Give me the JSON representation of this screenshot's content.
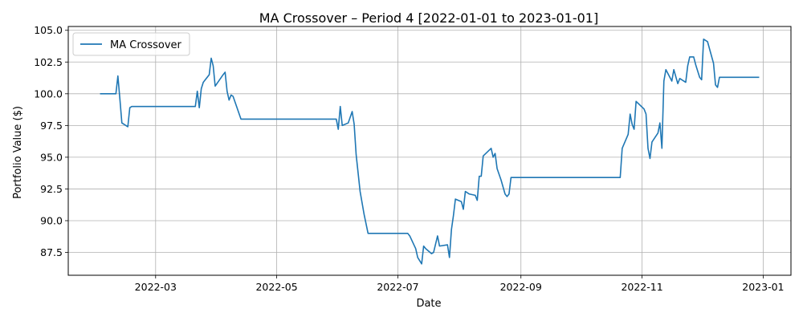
{
  "chart_data": {
    "type": "line",
    "title": "MA Crossover – Period 4 [2022-01-01 to 2023-01-01]",
    "xlabel": "Date",
    "ylabel": "Portfolio Value ($)",
    "xlim": [
      "2022-01-16",
      "2023-01-15"
    ],
    "ylim": [
      85.7,
      105.3
    ],
    "grid": true,
    "legend_position": "top-left",
    "xticks": [
      "2022-03",
      "2022-05",
      "2022-07",
      "2022-09",
      "2022-11",
      "2023-01"
    ],
    "yticks": [
      "87.5",
      "90.0",
      "92.5",
      "95.0",
      "97.5",
      "100.0",
      "102.5",
      "105.0"
    ],
    "series": [
      {
        "name": "MA Crossover",
        "color": "#1f77b4",
        "points": [
          [
            "2022-02-01",
            100.0
          ],
          [
            "2022-02-09",
            100.0
          ],
          [
            "2022-02-10",
            101.4
          ],
          [
            "2022-02-11",
            99.6
          ],
          [
            "2022-02-12",
            97.7
          ],
          [
            "2022-02-15",
            97.4
          ],
          [
            "2022-02-16",
            98.9
          ],
          [
            "2022-02-17",
            99.0
          ],
          [
            "2022-03-21",
            99.0
          ],
          [
            "2022-03-22",
            100.2
          ],
          [
            "2022-03-23",
            98.9
          ],
          [
            "2022-03-24",
            100.4
          ],
          [
            "2022-03-25",
            100.9
          ],
          [
            "2022-03-28",
            101.5
          ],
          [
            "2022-03-29",
            102.8
          ],
          [
            "2022-03-30",
            102.2
          ],
          [
            "2022-03-31",
            100.6
          ],
          [
            "2022-04-04",
            101.5
          ],
          [
            "2022-04-05",
            101.7
          ],
          [
            "2022-04-06",
            100.2
          ],
          [
            "2022-04-07",
            99.5
          ],
          [
            "2022-04-08",
            99.9
          ],
          [
            "2022-04-09",
            99.8
          ],
          [
            "2022-04-13",
            98.0
          ],
          [
            "2022-05-31",
            98.0
          ],
          [
            "2022-06-01",
            97.2
          ],
          [
            "2022-06-02",
            99.0
          ],
          [
            "2022-06-03",
            97.5
          ],
          [
            "2022-06-06",
            97.7
          ],
          [
            "2022-06-08",
            98.6
          ],
          [
            "2022-06-09",
            97.6
          ],
          [
            "2022-06-10",
            95.2
          ],
          [
            "2022-06-12",
            92.3
          ],
          [
            "2022-06-14",
            90.5
          ],
          [
            "2022-06-16",
            89.0
          ],
          [
            "2022-07-06",
            89.0
          ],
          [
            "2022-07-07",
            88.8
          ],
          [
            "2022-07-10",
            87.8
          ],
          [
            "2022-07-11",
            87.1
          ],
          [
            "2022-07-13",
            86.6
          ],
          [
            "2022-07-14",
            88.0
          ],
          [
            "2022-07-15",
            87.8
          ],
          [
            "2022-07-18",
            87.4
          ],
          [
            "2022-07-19",
            87.5
          ],
          [
            "2022-07-21",
            88.8
          ],
          [
            "2022-07-22",
            88.0
          ],
          [
            "2022-07-26",
            88.1
          ],
          [
            "2022-07-27",
            87.1
          ],
          [
            "2022-07-28",
            89.3
          ],
          [
            "2022-07-29",
            90.4
          ],
          [
            "2022-07-30",
            91.7
          ],
          [
            "2022-08-02",
            91.5
          ],
          [
            "2022-08-03",
            90.9
          ],
          [
            "2022-08-04",
            92.3
          ],
          [
            "2022-08-06",
            92.1
          ],
          [
            "2022-08-09",
            92.0
          ],
          [
            "2022-08-10",
            91.6
          ],
          [
            "2022-08-11",
            93.5
          ],
          [
            "2022-08-12",
            93.5
          ],
          [
            "2022-08-13",
            95.1
          ],
          [
            "2022-08-17",
            95.7
          ],
          [
            "2022-08-18",
            95.0
          ],
          [
            "2022-08-19",
            95.3
          ],
          [
            "2022-08-20",
            94.1
          ],
          [
            "2022-08-22",
            93.2
          ],
          [
            "2022-08-24",
            92.1
          ],
          [
            "2022-08-25",
            91.9
          ],
          [
            "2022-08-26",
            92.1
          ],
          [
            "2022-08-27",
            93.4
          ],
          [
            "2022-10-21",
            93.4
          ],
          [
            "2022-10-22",
            95.7
          ],
          [
            "2022-10-25",
            96.8
          ],
          [
            "2022-10-26",
            98.4
          ],
          [
            "2022-10-27",
            97.6
          ],
          [
            "2022-10-28",
            97.2
          ],
          [
            "2022-10-29",
            99.4
          ],
          [
            "2022-11-02",
            98.8
          ],
          [
            "2022-11-03",
            98.4
          ],
          [
            "2022-11-04",
            95.7
          ],
          [
            "2022-11-05",
            94.9
          ],
          [
            "2022-11-06",
            96.2
          ],
          [
            "2022-11-09",
            96.9
          ],
          [
            "2022-11-10",
            97.7
          ],
          [
            "2022-11-11",
            95.7
          ],
          [
            "2022-11-12",
            101.0
          ],
          [
            "2022-11-13",
            101.9
          ],
          [
            "2022-11-16",
            101.0
          ],
          [
            "2022-11-17",
            101.9
          ],
          [
            "2022-11-19",
            100.8
          ],
          [
            "2022-11-20",
            101.2
          ],
          [
            "2022-11-23",
            100.9
          ],
          [
            "2022-11-24",
            102.2
          ],
          [
            "2022-11-25",
            102.9
          ],
          [
            "2022-11-27",
            102.9
          ],
          [
            "2022-11-28",
            102.3
          ],
          [
            "2022-11-30",
            101.3
          ],
          [
            "2022-12-01",
            101.1
          ],
          [
            "2022-12-02",
            104.3
          ],
          [
            "2022-12-04",
            104.1
          ],
          [
            "2022-12-07",
            102.4
          ],
          [
            "2022-12-08",
            100.7
          ],
          [
            "2022-12-09",
            100.5
          ],
          [
            "2022-12-10",
            101.3
          ],
          [
            "2022-12-30",
            101.3
          ]
        ]
      }
    ]
  }
}
